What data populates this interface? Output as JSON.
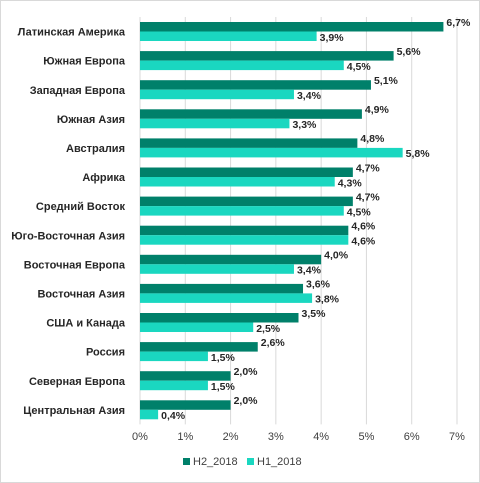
{
  "chart_data": {
    "type": "bar",
    "orientation": "horizontal",
    "categories": [
      "Латинская Америка",
      "Южная Европа",
      "Западная Европа",
      "Южная Азия",
      "Австралия",
      "Африка",
      "Средний Восток",
      "Юго-Восточная Азия",
      "Восточная Европа",
      "Восточная Азия",
      "США и Канада",
      "Россия",
      "Северная Европа",
      "Центральная Азия"
    ],
    "series": [
      {
        "name": "H2_2018",
        "color": "#00806a",
        "values": [
          6.7,
          5.6,
          5.1,
          4.9,
          4.8,
          4.7,
          4.7,
          4.6,
          4.0,
          3.6,
          3.5,
          2.6,
          2.0,
          2.0
        ],
        "labels": [
          "6,7%",
          "5,6%",
          "5,1%",
          "4,9%",
          "4,8%",
          "4,7%",
          "4,7%",
          "4,6%",
          "4,0%",
          "3,6%",
          "3,5%",
          "2,6%",
          "2,0%",
          "2,0%"
        ]
      },
      {
        "name": "H1_2018",
        "color": "#1ad7c0",
        "values": [
          3.9,
          4.5,
          3.4,
          3.3,
          5.8,
          4.3,
          4.5,
          4.6,
          3.4,
          3.8,
          2.5,
          1.5,
          1.5,
          0.4
        ],
        "labels": [
          "3,9%",
          "4,5%",
          "3,4%",
          "3,3%",
          "5,8%",
          "4,3%",
          "4,5%",
          "4,6%",
          "3,4%",
          "3,8%",
          "2,5%",
          "1,5%",
          "1,5%",
          "0,4%"
        ]
      }
    ],
    "x_ticks": [
      "0%",
      "1%",
      "2%",
      "3%",
      "4%",
      "5%",
      "6%",
      "7%"
    ],
    "xlim": [
      0,
      7
    ],
    "grid": "vertical",
    "legend_position": "bottom"
  }
}
